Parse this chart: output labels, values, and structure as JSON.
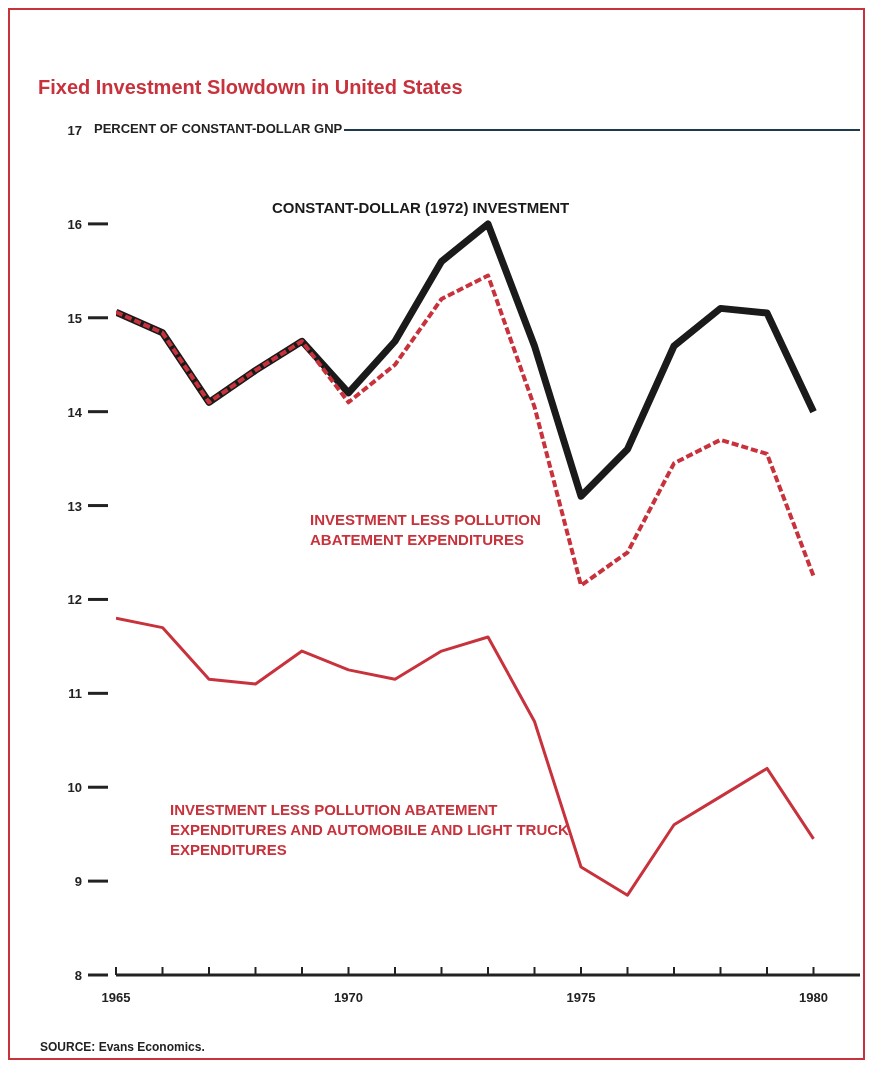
{
  "chart_data": {
    "type": "line",
    "title": "Fixed Investment Slowdown in United States",
    "x": [
      1965,
      1966,
      1967,
      1968,
      1969,
      1970,
      1971,
      1972,
      1973,
      1974,
      1975,
      1976,
      1977,
      1978,
      1979,
      1980
    ],
    "series": [
      {
        "name": "CONSTANT-DOLLAR (1972) INVESTMENT",
        "color": "#1a1a1a",
        "values": [
          15.06,
          14.84,
          14.1,
          14.44,
          14.75,
          14.2,
          14.75,
          15.6,
          16.0,
          14.7,
          13.1,
          13.6,
          14.7,
          15.1,
          15.05,
          14.0
        ]
      },
      {
        "name": "INVESTMENT LESS POLLUTION ABATEMENT EXPENDITURES",
        "color": "#c8323c",
        "line_style": "dashed",
        "values": [
          15.06,
          14.84,
          14.1,
          14.44,
          14.75,
          14.1,
          14.5,
          15.2,
          15.45,
          14.05,
          12.15,
          12.5,
          13.45,
          13.7,
          13.55,
          12.25
        ]
      },
      {
        "name": "INVESTMENT LESS POLLUTION ABATEMENT EXPENDITURES AND AUTOMOBILE AND LIGHT TRUCK EXPENDITURES",
        "color": "#c8323c",
        "values": [
          11.8,
          11.7,
          11.15,
          11.1,
          11.45,
          11.25,
          11.15,
          11.45,
          11.6,
          10.7,
          9.15,
          8.85,
          9.6,
          9.9,
          10.2,
          9.45
        ]
      }
    ],
    "xlim": [
      1965,
      1981
    ],
    "xticks": [
      1965,
      {
        "value": 1966,
        "label": null
      },
      {
        "value": 1967,
        "label": null
      },
      {
        "value": 1968,
        "label": null
      },
      {
        "value": 1969,
        "label": null
      },
      1970,
      {
        "value": 1971,
        "label": null
      },
      {
        "value": 1972,
        "label": null
      },
      {
        "value": 1973,
        "label": null
      },
      {
        "value": 1974,
        "label": null
      },
      1975,
      {
        "value": 1976,
        "label": null
      },
      {
        "value": 1977,
        "label": null
      },
      {
        "value": 1978,
        "label": null
      },
      {
        "value": 1979,
        "label": null
      },
      1980
    ],
    "ylim": [
      8,
      17
    ],
    "yticks": [
      8,
      9,
      10,
      11,
      12,
      13,
      14,
      15,
      16,
      17
    ],
    "ylabel": "PERCENT OF CONSTANT-DOLLAR GNP",
    "ref_lines": [
      {
        "axis": "y",
        "value": 17,
        "color": "#1f3a4d"
      }
    ],
    "annotations": [
      "SOURCE: Evans Economics."
    ]
  }
}
